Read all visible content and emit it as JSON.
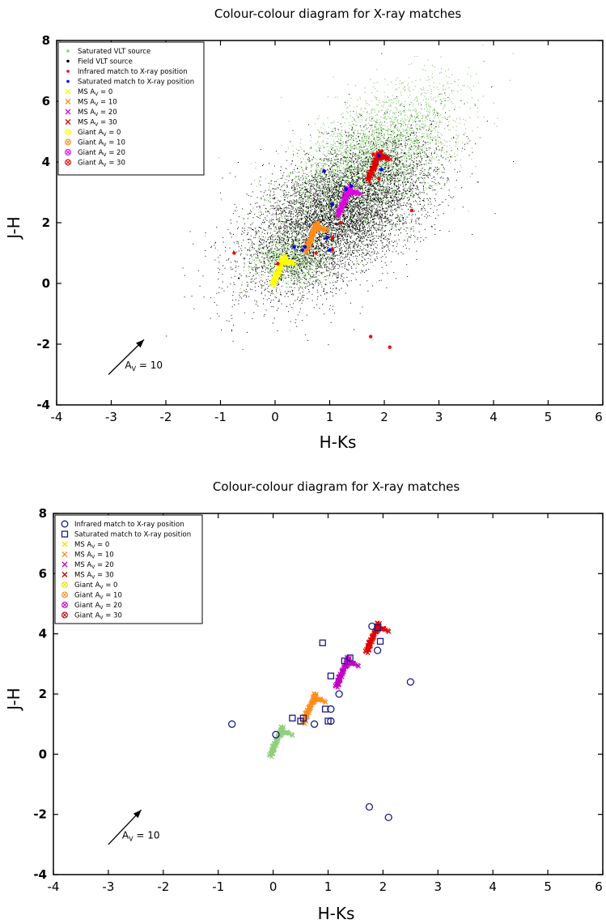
{
  "chart_data": [
    {
      "type": "scatter",
      "title": "Colour-colour diagram for X-ray matches",
      "xlabel": "H-Ks",
      "ylabel": "J-H",
      "xlim": [
        -4,
        6
      ],
      "ylim": [
        -4,
        8
      ],
      "xticks": [
        "-4",
        "-3",
        "-2",
        "-1",
        "0",
        "1",
        "2",
        "3",
        "4",
        "5",
        "6"
      ],
      "yticks": [
        "-4",
        "-2",
        "0",
        "2",
        "4",
        "6",
        "8"
      ],
      "legend_position": "top-left",
      "legend": [
        {
          "label": "Saturated VLT source",
          "marker": "dot",
          "color": "#8fd07a"
        },
        {
          "label": "Field VLT source",
          "marker": "dot",
          "color": "#000000"
        },
        {
          "label": "Infrared match to X-ray position",
          "marker": "dot",
          "color": "#ff0000"
        },
        {
          "label": "Saturated match to X-ray position",
          "marker": "dot",
          "color": "#0000ff"
        },
        {
          "label": "MS A",
          "sub": "V",
          "suffix": " = 0",
          "marker": "x",
          "color": "#ffff00"
        },
        {
          "label": "MS A",
          "sub": "V",
          "suffix": " = 10",
          "marker": "x",
          "color": "#ff8c1a"
        },
        {
          "label": "MS A",
          "sub": "V",
          "suffix": " = 20",
          "marker": "x",
          "color": "#e000e0"
        },
        {
          "label": "MS A",
          "sub": "V",
          "suffix": " = 30",
          "marker": "x",
          "color": "#e00000"
        },
        {
          "label": "Giant A",
          "sub": "V",
          "suffix": " = 0",
          "marker": "circx",
          "color": "#ffff00"
        },
        {
          "label": "Giant A",
          "sub": "V",
          "suffix": " = 10",
          "marker": "circx",
          "color": "#ff8c1a"
        },
        {
          "label": "Giant A",
          "sub": "V",
          "suffix": " = 20",
          "marker": "circx",
          "color": "#e000e0"
        },
        {
          "label": "Giant A",
          "sub": "V",
          "suffix": " = 30",
          "marker": "circx",
          "color": "#e00000"
        }
      ],
      "arrow_label": {
        "text": "A",
        "sub": "V",
        "suffix": " = 10"
      },
      "reddening_vector": {
        "from": [
          -3.05,
          -3.0
        ],
        "to": [
          -2.4,
          -1.85
        ]
      },
      "field_cloud": {
        "description_color": "#000000",
        "center": [
          1.2,
          2.4
        ],
        "spread": [
          0.9,
          1.3
        ]
      },
      "saturated_cloud": {
        "color": "#8fd07a",
        "center": [
          1.9,
          4.0
        ],
        "spread": [
          0.8,
          1.0
        ]
      },
      "infrared_matches": {
        "x": [
          -0.75,
          0.05,
          0.75,
          1.05,
          1.05,
          1.2,
          1.75,
          1.8,
          1.9,
          2.1,
          2.5
        ],
        "y": [
          1.0,
          0.65,
          1.0,
          1.5,
          1.1,
          2.0,
          -1.75,
          4.25,
          3.45,
          -2.1,
          2.4
        ]
      },
      "saturated_matches": {
        "x": [
          0.35,
          0.5,
          0.55,
          0.9,
          0.95,
          1.0,
          1.05,
          1.3,
          1.4,
          1.9,
          1.95
        ],
        "y": [
          1.2,
          1.1,
          1.2,
          3.7,
          1.5,
          1.1,
          2.6,
          3.1,
          3.2,
          4.2,
          3.75
        ]
      },
      "ms_tracks": [
        {
          "av": 0,
          "color": "#ffff00"
        },
        {
          "av": 10,
          "color": "#ff8c1a"
        },
        {
          "av": 20,
          "color": "#e000e0"
        },
        {
          "av": 30,
          "color": "#e00000"
        }
      ]
    },
    {
      "type": "scatter",
      "title": "Colour-colour diagram for X-ray matches",
      "xlabel": "H-Ks",
      "ylabel": "J-H",
      "xlim": [
        -4,
        6
      ],
      "ylim": [
        -4,
        8
      ],
      "xticks": [
        "-4",
        "-3",
        "-2",
        "-1",
        "0",
        "1",
        "2",
        "3",
        "4",
        "5",
        "6"
      ],
      "yticks": [
        "-4",
        "-2",
        "0",
        "2",
        "4",
        "6",
        "8"
      ],
      "legend_position": "top-left",
      "legend": [
        {
          "label": "Infrared match to X-ray position",
          "marker": "circle",
          "color": "#1a1a8c"
        },
        {
          "label": "Saturated match to X-ray position",
          "marker": "square",
          "color": "#1a1a8c"
        },
        {
          "label": "MS A",
          "sub": "V",
          "suffix": " = 0",
          "marker": "x",
          "color": "#e6e600"
        },
        {
          "label": "MS A",
          "sub": "V",
          "suffix": " = 10",
          "marker": "x",
          "color": "#ff8c1a"
        },
        {
          "label": "MS A",
          "sub": "V",
          "suffix": " = 20",
          "marker": "x",
          "color": "#c000c0"
        },
        {
          "label": "MS A",
          "sub": "V",
          "suffix": " = 30",
          "marker": "x",
          "color": "#c00000"
        },
        {
          "label": "Giant A",
          "sub": "V",
          "suffix": " = 0",
          "marker": "circx",
          "color": "#e6e600"
        },
        {
          "label": "Giant A",
          "sub": "V",
          "suffix": " = 10",
          "marker": "circx",
          "color": "#ff8c1a"
        },
        {
          "label": "Giant A",
          "sub": "V",
          "suffix": " = 20",
          "marker": "circx",
          "color": "#c000c0"
        },
        {
          "label": "Giant A",
          "sub": "V",
          "suffix": " = 30",
          "marker": "circx",
          "color": "#c00000"
        }
      ],
      "arrow_label": {
        "text": "A",
        "sub": "V",
        "suffix": " = 10"
      },
      "reddening_vector": {
        "from": [
          -3.0,
          -3.0
        ],
        "to": [
          -2.4,
          -1.85
        ]
      },
      "infrared_matches": {
        "x": [
          -0.75,
          0.05,
          0.75,
          1.05,
          1.05,
          1.2,
          1.75,
          1.8,
          1.9,
          2.1,
          2.5
        ],
        "y": [
          1.0,
          0.65,
          1.0,
          1.5,
          1.1,
          2.0,
          -1.75,
          4.25,
          3.45,
          -2.1,
          2.4
        ]
      },
      "saturated_matches": {
        "x": [
          0.35,
          0.5,
          0.55,
          0.9,
          0.95,
          1.0,
          1.05,
          1.3,
          1.4,
          1.9,
          1.95
        ],
        "y": [
          1.2,
          1.1,
          1.2,
          3.7,
          1.5,
          1.1,
          2.6,
          3.1,
          3.2,
          4.2,
          3.75
        ]
      },
      "ms_tracks": [
        {
          "av": 0,
          "color": "#8fd07a"
        },
        {
          "av": 10,
          "color": "#ff8c1a"
        },
        {
          "av": 20,
          "color": "#c000c0"
        },
        {
          "av": 30,
          "color": "#e00000"
        }
      ]
    }
  ]
}
